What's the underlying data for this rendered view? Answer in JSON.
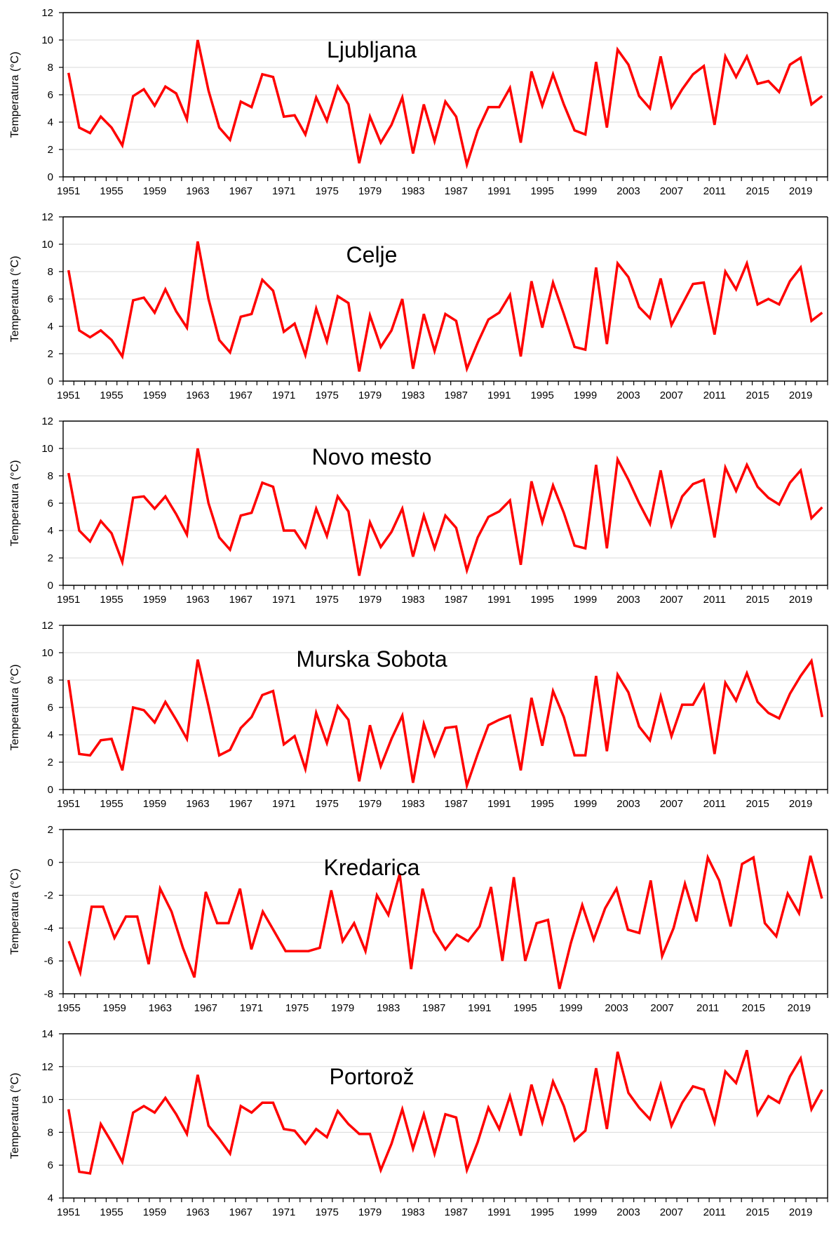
{
  "chart_data": [
    {
      "type": "line",
      "title": "Ljubljana",
      "ylabel": "Temperatura (°C)",
      "xlabel": "",
      "x_start": 1951,
      "x_end": 2021,
      "ylim": [
        0,
        12
      ],
      "yticks": [
        0,
        2,
        4,
        6,
        8,
        10,
        12
      ],
      "xtick_labels": [
        "1951",
        "1955",
        "1959",
        "1963",
        "1967",
        "1971",
        "1975",
        "1979",
        "1983",
        "1987",
        "1991",
        "1995",
        "1999",
        "2003",
        "2007",
        "2011",
        "2015",
        "2019"
      ],
      "grid": true,
      "color": "#ff0000",
      "series": [
        {
          "values": [
            7.6,
            3.6,
            3.2,
            4.4,
            3.6,
            2.3,
            5.9,
            6.4,
            5.2,
            6.6,
            6.1,
            4.2,
            10.0,
            6.3,
            3.6,
            2.7,
            5.5,
            5.1,
            7.5,
            7.3,
            4.4,
            4.5,
            3.1,
            5.8,
            4.1,
            6.6,
            5.3,
            1.0,
            4.4,
            2.5,
            3.8,
            5.8,
            1.7,
            5.3,
            2.6,
            5.5,
            4.4,
            0.9,
            3.4,
            5.1,
            5.1,
            6.5,
            2.5,
            7.7,
            5.2,
            7.5,
            5.3,
            3.4,
            3.1,
            8.4,
            3.6,
            9.3,
            8.2,
            5.9,
            5.0,
            8.8,
            5.1,
            6.4,
            7.5,
            8.1,
            3.8,
            8.8,
            7.3,
            8.8,
            6.8,
            7.0,
            6.2,
            8.2,
            8.7,
            5.3,
            5.9
          ]
        }
      ]
    },
    {
      "type": "line",
      "title": "Celje",
      "ylabel": "Temperatura (°C)",
      "xlabel": "",
      "x_start": 1951,
      "x_end": 2021,
      "ylim": [
        0,
        12
      ],
      "yticks": [
        0,
        2,
        4,
        6,
        8,
        10,
        12
      ],
      "xtick_labels": [
        "1951",
        "1955",
        "1959",
        "1963",
        "1967",
        "1971",
        "1975",
        "1979",
        "1983",
        "1987",
        "1991",
        "1995",
        "1999",
        "2003",
        "2007",
        "2011",
        "2015",
        "2019"
      ],
      "grid": true,
      "color": "#ff0000",
      "series": [
        {
          "values": [
            8.1,
            3.7,
            3.2,
            3.7,
            3.0,
            1.8,
            5.9,
            6.1,
            5.0,
            6.7,
            5.1,
            3.9,
            10.2,
            6.0,
            3.0,
            2.1,
            4.7,
            4.9,
            7.4,
            6.6,
            3.6,
            4.2,
            1.9,
            5.3,
            2.9,
            6.2,
            5.7,
            0.7,
            4.8,
            2.5,
            3.7,
            6.0,
            0.9,
            4.9,
            2.2,
            4.9,
            4.4,
            0.9,
            2.8,
            4.5,
            5.0,
            6.3,
            1.8,
            7.3,
            3.9,
            7.2,
            4.9,
            2.5,
            2.3,
            8.3,
            2.7,
            8.6,
            7.6,
            5.4,
            4.6,
            7.5,
            4.1,
            5.6,
            7.1,
            7.2,
            3.4,
            8.0,
            6.7,
            8.6,
            5.6,
            6.0,
            5.6,
            7.3,
            8.3,
            4.4,
            5.0
          ]
        }
      ]
    },
    {
      "type": "line",
      "title": "Novo mesto",
      "ylabel": "Temperatura (°C)",
      "xlabel": "",
      "x_start": 1951,
      "x_end": 2021,
      "ylim": [
        0,
        12
      ],
      "yticks": [
        0,
        2,
        4,
        6,
        8,
        10,
        12
      ],
      "xtick_labels": [
        "1951",
        "1955",
        "1959",
        "1963",
        "1967",
        "1971",
        "1975",
        "1979",
        "1983",
        "1987",
        "1991",
        "1995",
        "1999",
        "2003",
        "2007",
        "2011",
        "2015",
        "2019"
      ],
      "grid": true,
      "color": "#ff0000",
      "series": [
        {
          "values": [
            8.2,
            4.0,
            3.2,
            4.7,
            3.8,
            1.7,
            6.4,
            6.5,
            5.6,
            6.5,
            5.2,
            3.7,
            10.0,
            6.0,
            3.5,
            2.6,
            5.1,
            5.3,
            7.5,
            7.2,
            4.0,
            4.0,
            2.8,
            5.6,
            3.6,
            6.5,
            5.4,
            0.7,
            4.6,
            2.8,
            3.9,
            5.6,
            2.1,
            5.1,
            2.7,
            5.1,
            4.2,
            1.1,
            3.5,
            5.0,
            5.4,
            6.2,
            1.5,
            7.6,
            4.6,
            7.3,
            5.3,
            2.9,
            2.7,
            8.8,
            2.7,
            9.2,
            7.7,
            6.0,
            4.5,
            8.4,
            4.4,
            6.5,
            7.4,
            7.7,
            3.5,
            8.6,
            6.9,
            8.8,
            7.2,
            6.4,
            5.9,
            7.5,
            8.4,
            4.9,
            5.7
          ]
        }
      ]
    },
    {
      "type": "line",
      "title": "Murska Sobota",
      "ylabel": "Temperatura (°C)",
      "xlabel": "",
      "x_start": 1951,
      "x_end": 2021,
      "ylim": [
        0,
        12
      ],
      "yticks": [
        0,
        2,
        4,
        6,
        8,
        10,
        12
      ],
      "xtick_labels": [
        "1951",
        "1955",
        "1959",
        "1963",
        "1967",
        "1971",
        "1975",
        "1979",
        "1983",
        "1987",
        "1991",
        "1995",
        "1999",
        "2003",
        "2007",
        "2011",
        "2015",
        "2019"
      ],
      "grid": true,
      "color": "#ff0000",
      "series": [
        {
          "values": [
            8.0,
            2.6,
            2.5,
            3.6,
            3.7,
            1.4,
            6.0,
            5.8,
            4.9,
            6.4,
            5.1,
            3.7,
            9.5,
            6.1,
            2.5,
            2.9,
            4.5,
            5.3,
            6.9,
            7.2,
            3.3,
            3.9,
            1.5,
            5.6,
            3.4,
            6.1,
            5.1,
            0.6,
            4.7,
            1.7,
            3.7,
            5.4,
            0.5,
            4.8,
            2.5,
            4.5,
            4.6,
            0.3,
            2.6,
            4.7,
            5.1,
            5.4,
            1.4,
            6.7,
            3.2,
            7.2,
            5.3,
            2.5,
            2.5,
            8.3,
            2.8,
            8.4,
            7.1,
            4.6,
            3.6,
            6.8,
            3.9,
            6.2,
            6.2,
            7.6,
            2.6,
            7.8,
            6.5,
            8.5,
            6.4,
            5.6,
            5.2,
            7.0,
            8.3,
            9.4,
            5.3
          ]
        }
      ]
    },
    {
      "type": "line",
      "title": "Kredarica",
      "ylabel": "Temperatura (°C)",
      "xlabel": "",
      "x_start": 1955,
      "x_end": 2021,
      "ylim": [
        -8,
        2
      ],
      "yticks": [
        -8,
        -6,
        -4,
        -2,
        0,
        2
      ],
      "xtick_labels": [
        "1955",
        "1959",
        "1963",
        "1967",
        "1971",
        "1975",
        "1979",
        "1983",
        "1987",
        "1991",
        "1995",
        "1999",
        "2003",
        "2007",
        "2011",
        "2015",
        "2019"
      ],
      "grid": true,
      "color": "#ff0000",
      "series": [
        {
          "values": [
            -4.8,
            -6.7,
            -2.7,
            -2.7,
            -4.6,
            -3.3,
            -3.3,
            -6.2,
            -1.6,
            -3.0,
            -5.2,
            -7.0,
            -1.8,
            -3.7,
            -3.7,
            -1.6,
            -5.3,
            -3.0,
            -4.2,
            -5.4,
            -5.4,
            -5.4,
            -5.2,
            -1.7,
            -4.8,
            -3.7,
            -5.4,
            -2.0,
            -3.2,
            -0.7,
            -6.5,
            -1.6,
            -4.2,
            -5.3,
            -4.4,
            -4.8,
            -3.9,
            -1.5,
            -6.0,
            -0.9,
            -6.0,
            -3.7,
            -3.5,
            -7.7,
            -4.9,
            -2.6,
            -4.7,
            -2.8,
            -1.6,
            -4.1,
            -4.3,
            -1.1,
            -5.7,
            -4.0,
            -1.3,
            -3.6,
            0.3,
            -1.1,
            -3.9,
            -0.1,
            0.3,
            -3.7,
            -4.5,
            -1.9,
            -3.1,
            0.4,
            -2.2
          ]
        }
      ]
    },
    {
      "type": "line",
      "title": "Portorož",
      "ylabel": "Temperatura (°C)",
      "xlabel": "",
      "x_start": 1951,
      "x_end": 2021,
      "ylim": [
        4,
        14
      ],
      "yticks": [
        4,
        6,
        8,
        10,
        12,
        14
      ],
      "xtick_labels": [
        "1951",
        "1955",
        "1959",
        "1963",
        "1967",
        "1971",
        "1975",
        "1979",
        "1983",
        "1987",
        "1991",
        "1995",
        "1999",
        "2003",
        "2007",
        "2011",
        "2015",
        "2019"
      ],
      "grid": true,
      "color": "#ff0000",
      "series": [
        {
          "values": [
            9.4,
            5.6,
            5.5,
            8.5,
            7.4,
            6.2,
            9.2,
            9.6,
            9.2,
            10.1,
            9.1,
            7.9,
            11.5,
            8.4,
            7.6,
            6.7,
            9.6,
            9.2,
            9.8,
            9.8,
            8.2,
            8.1,
            7.3,
            8.2,
            7.7,
            9.3,
            8.5,
            7.9,
            7.9,
            5.7,
            7.3,
            9.4,
            7.0,
            9.1,
            6.7,
            9.1,
            8.9,
            5.7,
            7.4,
            9.5,
            8.2,
            10.2,
            7.8,
            10.9,
            8.6,
            11.1,
            9.6,
            7.5,
            8.1,
            11.9,
            8.2,
            12.9,
            10.4,
            9.5,
            8.8,
            10.9,
            8.4,
            9.8,
            10.8,
            10.6,
            8.6,
            11.7,
            11.0,
            13.0,
            9.1,
            10.2,
            9.8,
            11.4,
            12.5,
            9.4,
            10.6
          ]
        }
      ]
    }
  ]
}
